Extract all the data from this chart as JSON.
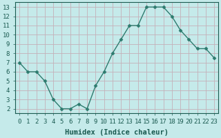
{
  "x": [
    0,
    1,
    2,
    3,
    4,
    5,
    6,
    7,
    8,
    9,
    10,
    11,
    12,
    13,
    14,
    15,
    16,
    17,
    18,
    19,
    20,
    21,
    22,
    23
  ],
  "y": [
    7.0,
    6.0,
    6.0,
    5.0,
    3.0,
    2.0,
    2.0,
    2.5,
    2.0,
    4.5,
    6.0,
    8.0,
    9.5,
    11.0,
    11.0,
    13.0,
    13.0,
    13.0,
    12.0,
    10.5,
    9.5,
    8.5,
    8.5,
    7.5
  ],
  "line_color": "#2d7b6e",
  "marker": "D",
  "marker_size": 2.5,
  "bg_color": "#c5eaea",
  "grid_color": "#c4b0b8",
  "xlabel": "Humidex (Indice chaleur)",
  "xlim": [
    -0.5,
    23.5
  ],
  "ylim": [
    1.5,
    13.5
  ],
  "yticks": [
    2,
    3,
    4,
    5,
    6,
    7,
    8,
    9,
    10,
    11,
    12,
    13
  ],
  "xticks": [
    0,
    1,
    2,
    3,
    4,
    5,
    6,
    7,
    8,
    9,
    10,
    11,
    12,
    13,
    14,
    15,
    16,
    17,
    18,
    19,
    20,
    21,
    22,
    23
  ],
  "font_size": 6.5,
  "xlabel_fontsize": 7.5,
  "tick_color": "#1a5a50",
  "line_width": 1.0
}
